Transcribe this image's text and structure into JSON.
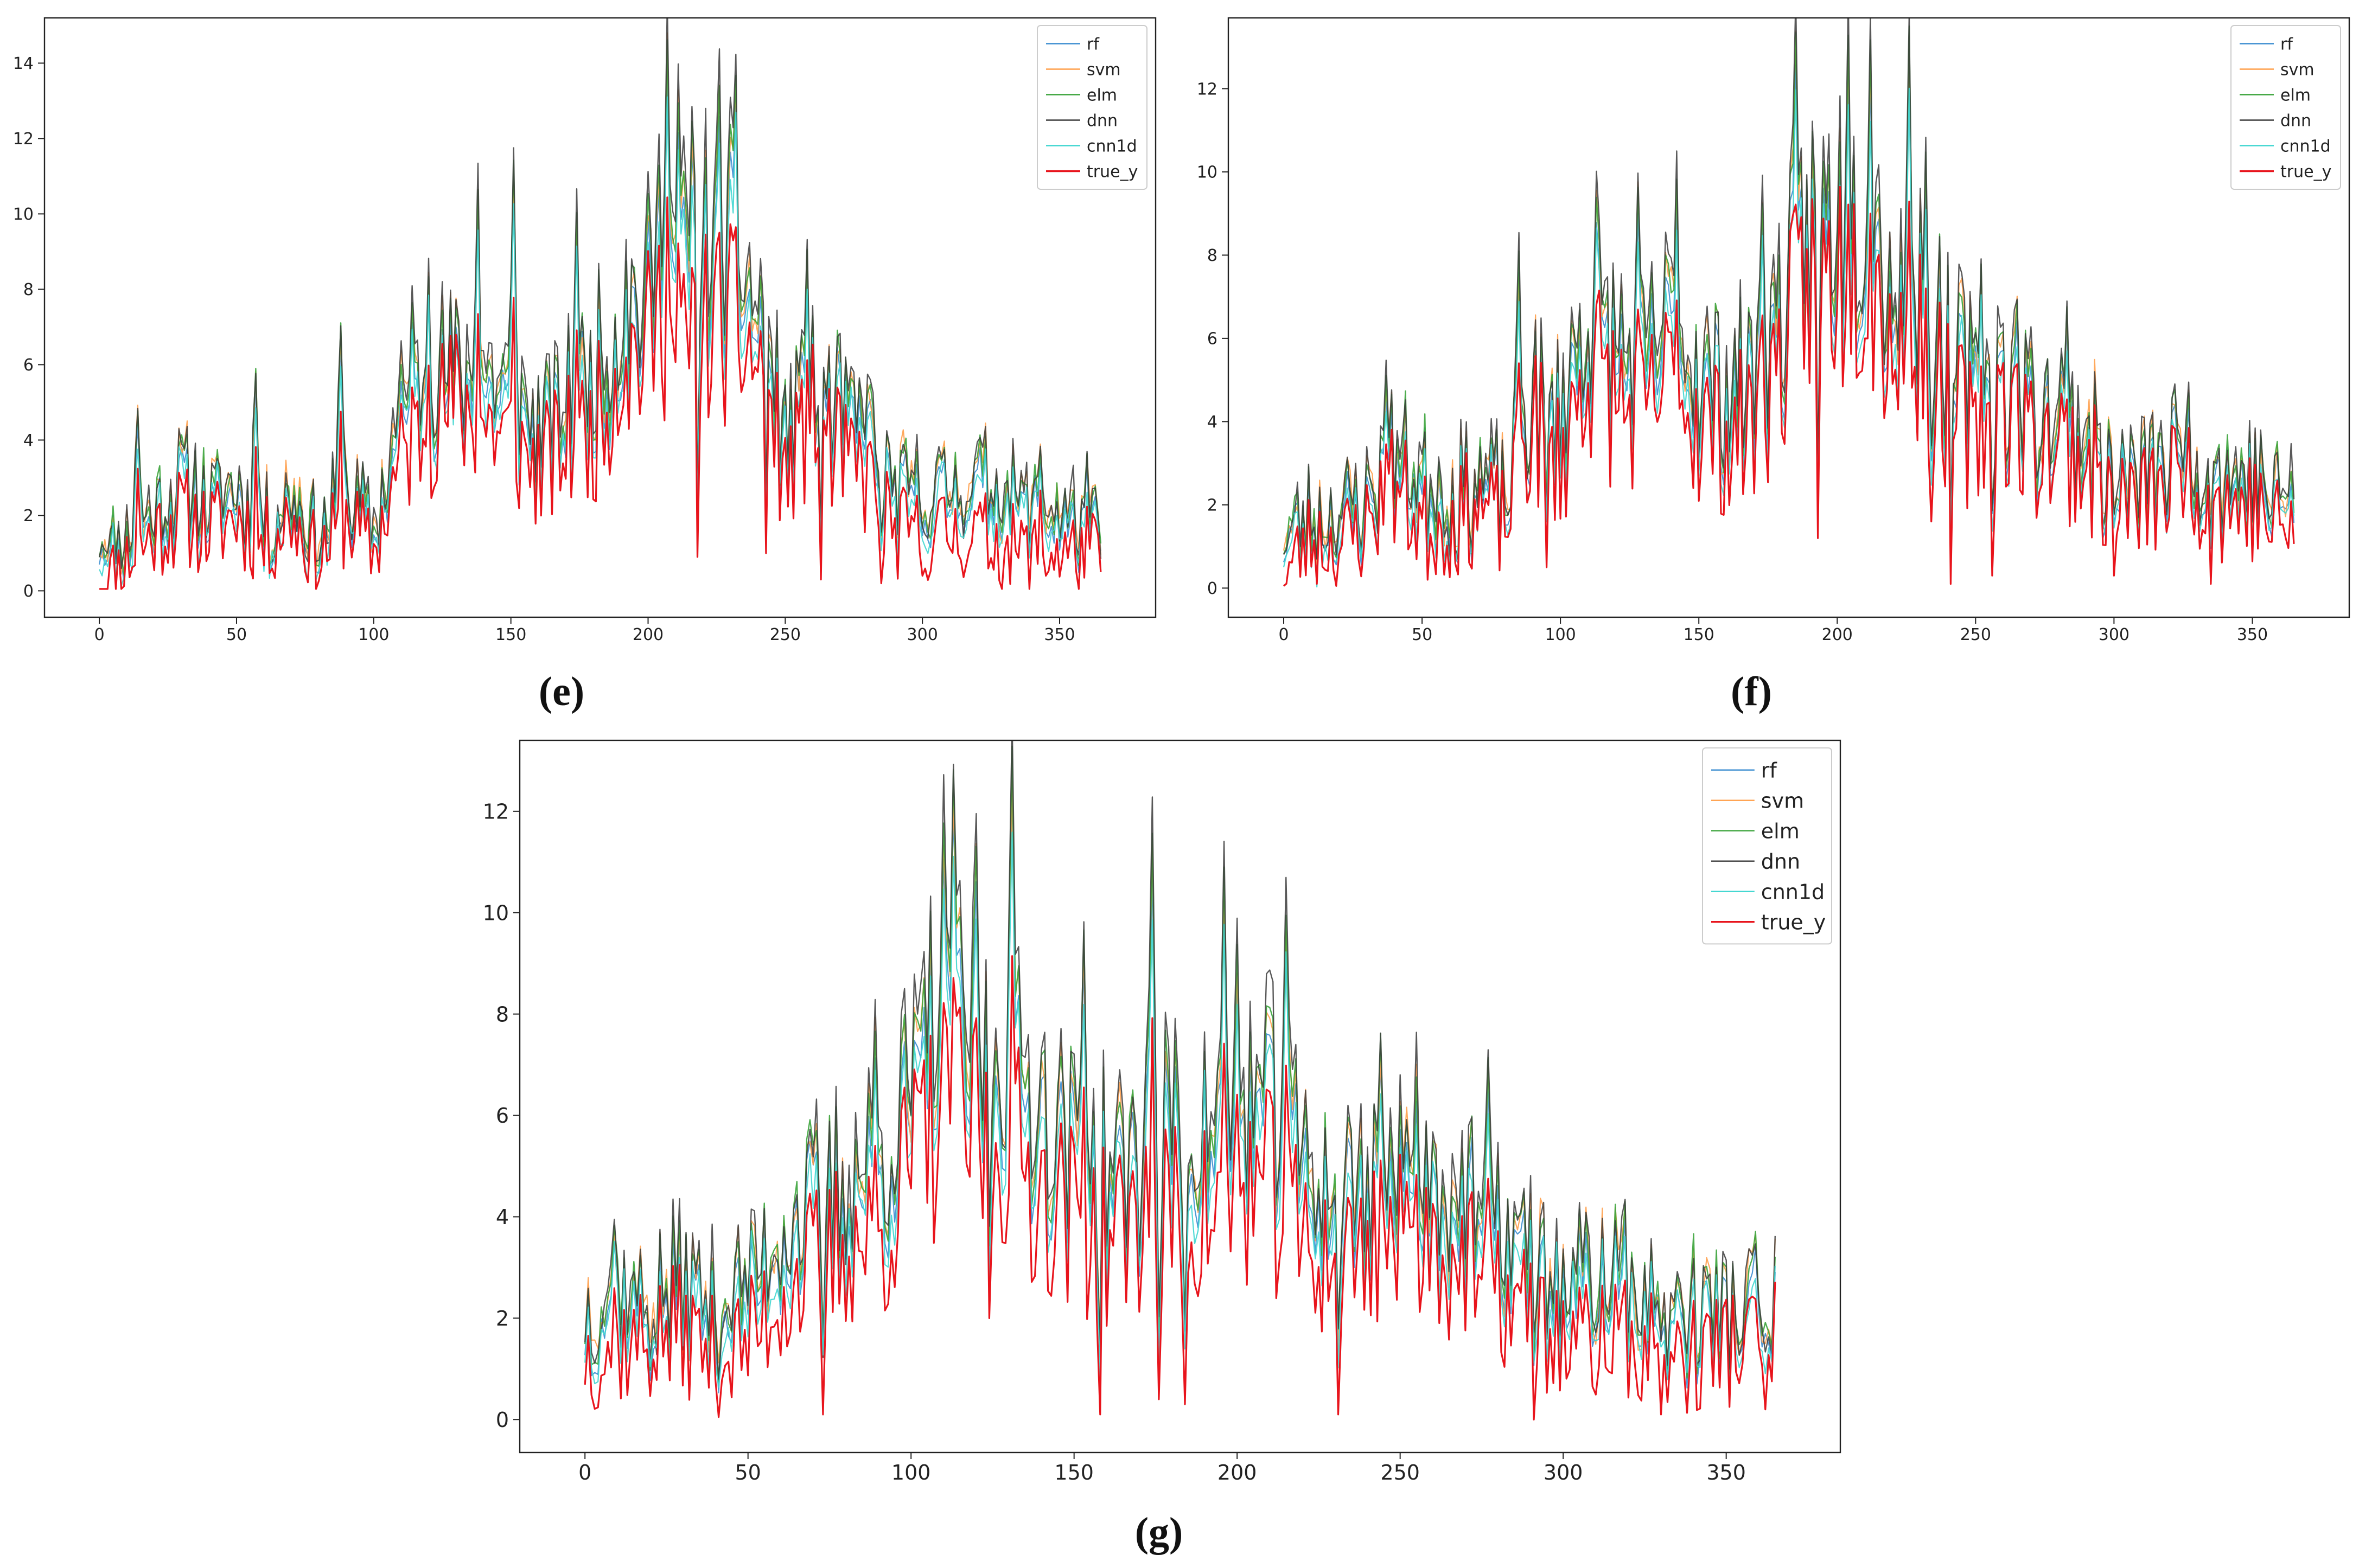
{
  "figure": {
    "captions": [
      "(e)",
      "(f)",
      "(g)"
    ]
  },
  "series_colors": {
    "rf": "#3c8ed0",
    "svm": "#ff9f4a",
    "elm": "#3aa33a",
    "dnn": "#3b3b3b",
    "cnn1d": "#3fd6d0",
    "true_y": "#e8141c"
  },
  "chart_data": [
    {
      "type": "line",
      "panel": "e",
      "caption": "(e)",
      "title": "",
      "xlabel": "",
      "ylabel": "",
      "xlim": [
        -20,
        385
      ],
      "ylim": [
        -0.7,
        15.2
      ],
      "xticks": [
        0,
        50,
        100,
        150,
        200,
        250,
        300,
        350
      ],
      "yticks": [
        0,
        2,
        4,
        6,
        8,
        10,
        12,
        14
      ],
      "legend": "top-right",
      "legend_labels": [
        "rf",
        "svm",
        "elm",
        "dnn",
        "cnn1d",
        "true_y"
      ],
      "anchors_x": [
        0,
        10,
        20,
        30,
        40,
        50,
        60,
        70,
        80,
        90,
        100,
        110,
        120,
        130,
        140,
        150,
        160,
        170,
        180,
        190,
        200,
        205,
        210,
        220,
        230,
        240,
        250,
        260,
        270,
        280,
        290,
        300,
        310,
        320,
        330,
        340,
        350,
        365
      ],
      "anchors_true": [
        0.2,
        0.8,
        1.5,
        2.0,
        1.6,
        2.0,
        1.2,
        2.0,
        0.8,
        2.0,
        1.0,
        3.5,
        4.5,
        5.0,
        4.5,
        4.0,
        3.2,
        3.8,
        4.2,
        6.0,
        6.5,
        7.5,
        6.0,
        7.0,
        7.0,
        6.0,
        3.0,
        4.5,
        3.5,
        3.0,
        1.5,
        1.5,
        1.5,
        1.5,
        1.2,
        1.0,
        1.0,
        1.0
      ],
      "anchors_model": [
        1.0,
        1.2,
        2.0,
        2.8,
        2.2,
        2.5,
        1.5,
        2.5,
        1.2,
        2.5,
        1.5,
        4.5,
        5.5,
        5.5,
        5.5,
        5.0,
        4.0,
        4.8,
        5.5,
        7.0,
        7.5,
        9.5,
        8.5,
        9.0,
        9.0,
        7.0,
        4.0,
        5.0,
        4.5,
        4.0,
        2.5,
        2.5,
        2.5,
        2.8,
        2.5,
        2.0,
        2.0,
        1.5
      ],
      "amplitude": 1.6,
      "peaks": [
        {
          "x": 14,
          "y": 4.5
        },
        {
          "x": 57,
          "y": 5.3
        },
        {
          "x": 88,
          "y": 6.6
        },
        {
          "x": 114,
          "y": 7.5
        },
        {
          "x": 120,
          "y": 8.3
        },
        {
          "x": 138,
          "y": 10.2
        },
        {
          "x": 151,
          "y": 10.8
        },
        {
          "x": 174,
          "y": 9.6
        },
        {
          "x": 192,
          "y": 8.6
        },
        {
          "x": 207,
          "y": 14.5
        },
        {
          "x": 211,
          "y": 12.8
        },
        {
          "x": 216,
          "y": 11.9
        },
        {
          "x": 226,
          "y": 13.2
        },
        {
          "x": 232,
          "y": 13.4
        },
        {
          "x": 258,
          "y": 8.5
        },
        {
          "x": 270,
          "y": 6.3
        },
        {
          "x": 280,
          "y": 5.3
        },
        {
          "x": 343,
          "y": 3.7
        },
        {
          "x": 360,
          "y": 3.1
        }
      ],
      "troughs": [
        {
          "x": 218,
          "y": 0.9
        },
        {
          "x": 243,
          "y": 1.0
        },
        {
          "x": 263,
          "y": 0.3
        },
        {
          "x": 285,
          "y": 0.2
        },
        {
          "x": 300,
          "y": 0.4
        },
        {
          "x": 345,
          "y": 0.4
        }
      ],
      "seed": 11
    },
    {
      "type": "line",
      "panel": "f",
      "caption": "(f)",
      "title": "",
      "xlabel": "",
      "ylabel": "",
      "xlim": [
        -20,
        385
      ],
      "ylim": [
        -0.7,
        13.7
      ],
      "xticks": [
        0,
        50,
        100,
        150,
        200,
        250,
        300,
        350
      ],
      "yticks": [
        0,
        2,
        4,
        6,
        8,
        10,
        12
      ],
      "legend": "top-right",
      "legend_labels": [
        "rf",
        "svm",
        "elm",
        "dnn",
        "cnn1d",
        "true_y"
      ],
      "anchors_x": [
        0,
        10,
        20,
        30,
        40,
        50,
        60,
        70,
        80,
        90,
        100,
        110,
        120,
        130,
        140,
        150,
        160,
        170,
        180,
        190,
        200,
        210,
        220,
        230,
        240,
        250,
        260,
        270,
        280,
        290,
        300,
        310,
        320,
        330,
        340,
        350,
        365
      ],
      "anchors_true": [
        0.3,
        1.2,
        1.0,
        1.5,
        2.5,
        1.5,
        1.5,
        2.0,
        1.5,
        4.0,
        3.0,
        5.5,
        4.5,
        4.0,
        5.0,
        4.0,
        3.5,
        4.0,
        5.5,
        7.5,
        7.5,
        8.0,
        6.0,
        6.0,
        4.5,
        3.5,
        4.5,
        3.5,
        3.5,
        3.0,
        2.0,
        2.0,
        2.5,
        2.5,
        2.0,
        2.0,
        1.0
      ],
      "anchors_model": [
        1.0,
        1.5,
        1.5,
        2.0,
        3.0,
        2.5,
        2.0,
        2.5,
        2.0,
        4.5,
        4.0,
        6.5,
        5.5,
        5.0,
        6.0,
        5.0,
        4.5,
        5.0,
        6.5,
        8.5,
        8.5,
        9.0,
        7.0,
        7.0,
        5.5,
        4.5,
        5.0,
        4.0,
        4.0,
        3.5,
        2.5,
        2.5,
        3.0,
        3.0,
        2.5,
        2.5,
        1.5
      ],
      "amplitude": 1.7,
      "peaks": [
        {
          "x": 37,
          "y": 4.8
        },
        {
          "x": 85,
          "y": 7.5
        },
        {
          "x": 113,
          "y": 9.1
        },
        {
          "x": 128,
          "y": 9.3
        },
        {
          "x": 142,
          "y": 9.6
        },
        {
          "x": 173,
          "y": 9.1
        },
        {
          "x": 185,
          "y": 12.8
        },
        {
          "x": 204,
          "y": 12.8
        },
        {
          "x": 212,
          "y": 12.5
        },
        {
          "x": 226,
          "y": 12.9
        },
        {
          "x": 232,
          "y": 10.0
        },
        {
          "x": 252,
          "y": 7.4
        },
        {
          "x": 265,
          "y": 6.5
        },
        {
          "x": 283,
          "y": 6.3
        },
        {
          "x": 326,
          "y": 3.7
        },
        {
          "x": 364,
          "y": 2.9
        }
      ],
      "troughs": [
        {
          "x": 52,
          "y": 0.2
        },
        {
          "x": 95,
          "y": 0.5
        },
        {
          "x": 193,
          "y": 1.2
        },
        {
          "x": 234,
          "y": 1.6
        },
        {
          "x": 241,
          "y": 0.1
        },
        {
          "x": 256,
          "y": 0.3
        },
        {
          "x": 300,
          "y": 0.3
        },
        {
          "x": 335,
          "y": 0.1
        }
      ],
      "seed": 23
    },
    {
      "type": "line",
      "panel": "g",
      "caption": "(g)",
      "title": "",
      "xlabel": "",
      "ylabel": "",
      "xlim": [
        -20,
        385
      ],
      "ylim": [
        -0.65,
        13.4
      ],
      "xticks": [
        0,
        50,
        100,
        150,
        200,
        250,
        300,
        350
      ],
      "yticks": [
        0,
        2,
        4,
        6,
        8,
        10,
        12
      ],
      "legend": "top-right",
      "legend_labels": [
        "rf",
        "svm",
        "elm",
        "dnn",
        "cnn1d",
        "true_y"
      ],
      "anchors_x": [
        0,
        10,
        20,
        30,
        40,
        50,
        60,
        70,
        80,
        90,
        100,
        110,
        120,
        130,
        140,
        150,
        160,
        170,
        180,
        190,
        200,
        210,
        220,
        230,
        240,
        250,
        260,
        270,
        280,
        290,
        300,
        310,
        320,
        330,
        340,
        350,
        365
      ],
      "anchors_true": [
        1.3,
        1.5,
        1.5,
        1.8,
        1.2,
        1.5,
        2.5,
        3.0,
        3.5,
        3.5,
        5.0,
        6.0,
        5.5,
        5.5,
        4.5,
        4.0,
        3.5,
        4.0,
        4.0,
        4.0,
        4.5,
        4.5,
        3.5,
        3.0,
        3.5,
        3.5,
        3.5,
        3.0,
        2.5,
        2.0,
        1.5,
        1.5,
        1.5,
        1.2,
        1.2,
        1.5,
        1.5
      ],
      "anchors_model": [
        2.0,
        2.5,
        2.0,
        2.5,
        2.0,
        2.5,
        3.5,
        4.0,
        4.5,
        5.0,
        6.0,
        7.5,
        7.0,
        7.0,
        6.0,
        5.0,
        4.5,
        5.0,
        5.5,
        5.5,
        6.0,
        6.0,
        5.0,
        4.0,
        4.5,
        4.5,
        4.5,
        4.0,
        3.5,
        3.0,
        2.5,
        2.5,
        2.5,
        2.0,
        2.0,
        2.0,
        1.8
      ],
      "amplitude": 1.6,
      "peaks": [
        {
          "x": 9,
          "y": 3.6
        },
        {
          "x": 89,
          "y": 7.5
        },
        {
          "x": 106,
          "y": 9.5
        },
        {
          "x": 110,
          "y": 11.4
        },
        {
          "x": 113,
          "y": 12.1
        },
        {
          "x": 120,
          "y": 11.0
        },
        {
          "x": 131,
          "y": 12.7
        },
        {
          "x": 153,
          "y": 9.1
        },
        {
          "x": 174,
          "y": 11.0
        },
        {
          "x": 196,
          "y": 10.3
        },
        {
          "x": 200,
          "y": 8.9
        },
        {
          "x": 215,
          "y": 9.7
        },
        {
          "x": 244,
          "y": 7.1
        },
        {
          "x": 255,
          "y": 6.7
        },
        {
          "x": 277,
          "y": 6.6
        },
        {
          "x": 316,
          "y": 3.7
        },
        {
          "x": 359,
          "y": 3.3
        }
      ],
      "troughs": [
        {
          "x": 73,
          "y": 0.1
        },
        {
          "x": 124,
          "y": 2.0
        },
        {
          "x": 158,
          "y": 0.1
        },
        {
          "x": 176,
          "y": 0.4
        },
        {
          "x": 184,
          "y": 0.3
        },
        {
          "x": 231,
          "y": 0.1
        },
        {
          "x": 291,
          "y": 0.0
        },
        {
          "x": 330,
          "y": 0.1
        },
        {
          "x": 362,
          "y": 0.2
        }
      ],
      "seed": 37
    }
  ]
}
